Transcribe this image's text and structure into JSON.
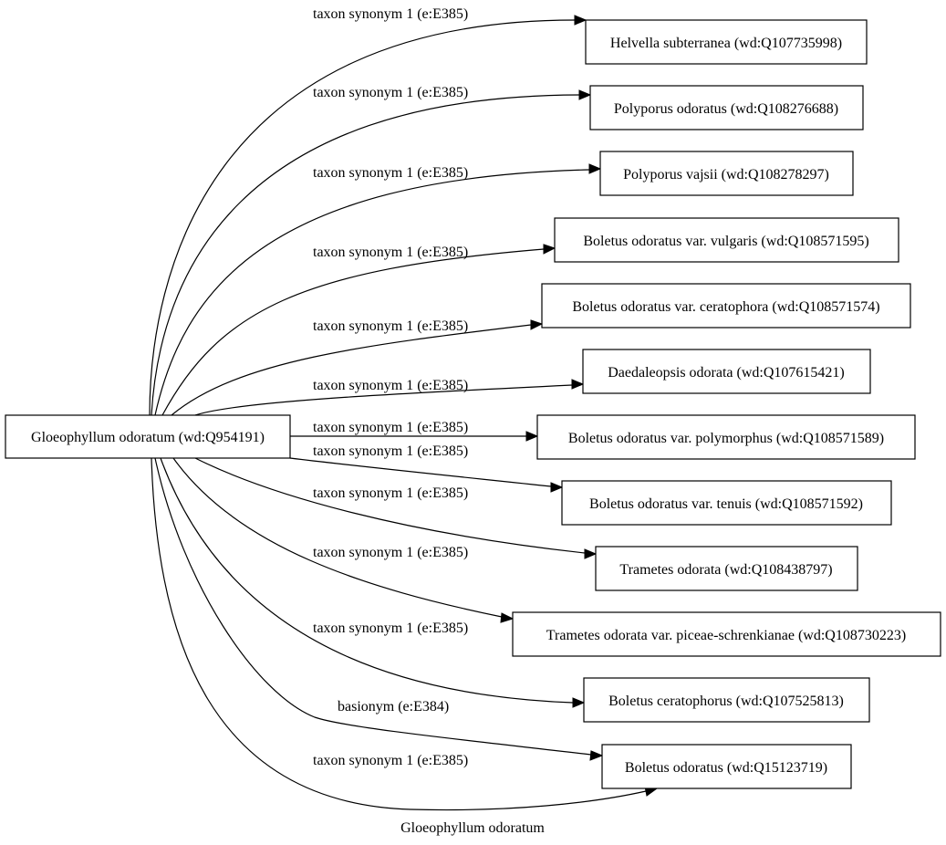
{
  "graph": {
    "caption": "Gloeophyllum odoratum",
    "source_node": {
      "id": "src",
      "label": "Gloeophyllum odoratum (wd:Q954191)"
    },
    "target_nodes": [
      {
        "id": "t1",
        "label": "Helvella subterranea (wd:Q107735998)"
      },
      {
        "id": "t2",
        "label": "Polyporus odoratus (wd:Q108276688)"
      },
      {
        "id": "t3",
        "label": "Polyporus vajsii (wd:Q108278297)"
      },
      {
        "id": "t4",
        "label": "Boletus odoratus var. vulgaris (wd:Q108571595)"
      },
      {
        "id": "t5",
        "label": "Boletus odoratus var. ceratophora (wd:Q108571574)"
      },
      {
        "id": "t6",
        "label": "Daedaleopsis odorata (wd:Q107615421)"
      },
      {
        "id": "t7",
        "label": "Boletus odoratus var. polymorphus (wd:Q108571589)"
      },
      {
        "id": "t8",
        "label": "Boletus odoratus var. tenuis (wd:Q108571592)"
      },
      {
        "id": "t9",
        "label": "Trametes odorata (wd:Q108438797)"
      },
      {
        "id": "t10",
        "label": "Trametes odorata var. piceae-schrenkianae (wd:Q108730223)"
      },
      {
        "id": "t11",
        "label": "Boletus ceratophorus (wd:Q107525813)"
      },
      {
        "id": "t12",
        "label": "Boletus odoratus (wd:Q15123719)"
      }
    ],
    "edges": [
      {
        "from": "src",
        "to": "t1",
        "label": "taxon synonym 1 (e:E385)"
      },
      {
        "from": "src",
        "to": "t2",
        "label": "taxon synonym 1 (e:E385)"
      },
      {
        "from": "src",
        "to": "t3",
        "label": "taxon synonym 1 (e:E385)"
      },
      {
        "from": "src",
        "to": "t4",
        "label": "taxon synonym 1 (e:E385)"
      },
      {
        "from": "src",
        "to": "t5",
        "label": "taxon synonym 1 (e:E385)"
      },
      {
        "from": "src",
        "to": "t6",
        "label": "taxon synonym 1 (e:E385)"
      },
      {
        "from": "src",
        "to": "t7",
        "label": "taxon synonym 1 (e:E385)"
      },
      {
        "from": "src",
        "to": "t8",
        "label": "taxon synonym 1 (e:E385)"
      },
      {
        "from": "src",
        "to": "t9",
        "label": "taxon synonym 1 (e:E385)"
      },
      {
        "from": "src",
        "to": "t10",
        "label": "taxon synonym 1 (e:E385)"
      },
      {
        "from": "src",
        "to": "t11",
        "label": "taxon synonym 1 (e:E385)"
      },
      {
        "from": "src",
        "to": "t12",
        "label": "basionym (e:E384)"
      },
      {
        "from": "src",
        "to": "t12",
        "label": "taxon synonym 1 (e:E385)"
      }
    ]
  }
}
